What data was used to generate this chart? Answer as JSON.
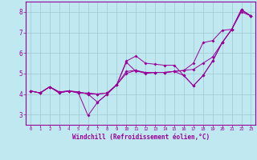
{
  "background_color": "#c0e8f0",
  "line_color": "#990099",
  "grid_color": "#a0c8d0",
  "xlabel": "Windchill (Refroidissement éolien,°C)",
  "xlim": [
    -0.5,
    23.5
  ],
  "ylim": [
    2.5,
    8.5
  ],
  "yticks": [
    3,
    4,
    5,
    6,
    7,
    8
  ],
  "xticks": [
    0,
    1,
    2,
    3,
    4,
    5,
    6,
    7,
    8,
    9,
    10,
    11,
    12,
    13,
    14,
    15,
    16,
    17,
    18,
    19,
    20,
    21,
    22,
    23
  ],
  "series": [
    [
      4.15,
      4.05,
      4.35,
      4.05,
      4.15,
      4.05,
      2.95,
      3.6,
      4.0,
      4.45,
      5.6,
      5.85,
      5.5,
      5.45,
      5.4,
      5.4,
      4.9,
      4.4,
      4.9,
      5.6,
      6.5,
      7.15,
      8.1,
      7.8
    ],
    [
      4.15,
      4.05,
      4.35,
      4.1,
      4.15,
      4.1,
      4.0,
      4.0,
      4.05,
      4.45,
      5.0,
      5.15,
      5.05,
      5.05,
      5.05,
      5.1,
      5.15,
      5.2,
      5.5,
      5.8,
      6.5,
      7.15,
      8.1,
      7.8
    ],
    [
      4.15,
      4.05,
      4.35,
      4.05,
      4.15,
      4.05,
      4.05,
      4.0,
      4.05,
      4.45,
      5.1,
      5.15,
      5.0,
      5.05,
      5.05,
      5.1,
      5.15,
      5.5,
      6.5,
      6.6,
      7.1,
      7.15,
      8.0,
      7.8
    ],
    [
      4.15,
      4.05,
      4.35,
      4.1,
      4.15,
      4.1,
      4.0,
      3.6,
      4.0,
      4.45,
      5.55,
      5.1,
      5.05,
      5.05,
      5.05,
      5.1,
      4.9,
      4.4,
      4.9,
      5.6,
      6.5,
      7.15,
      8.1,
      7.8
    ]
  ]
}
